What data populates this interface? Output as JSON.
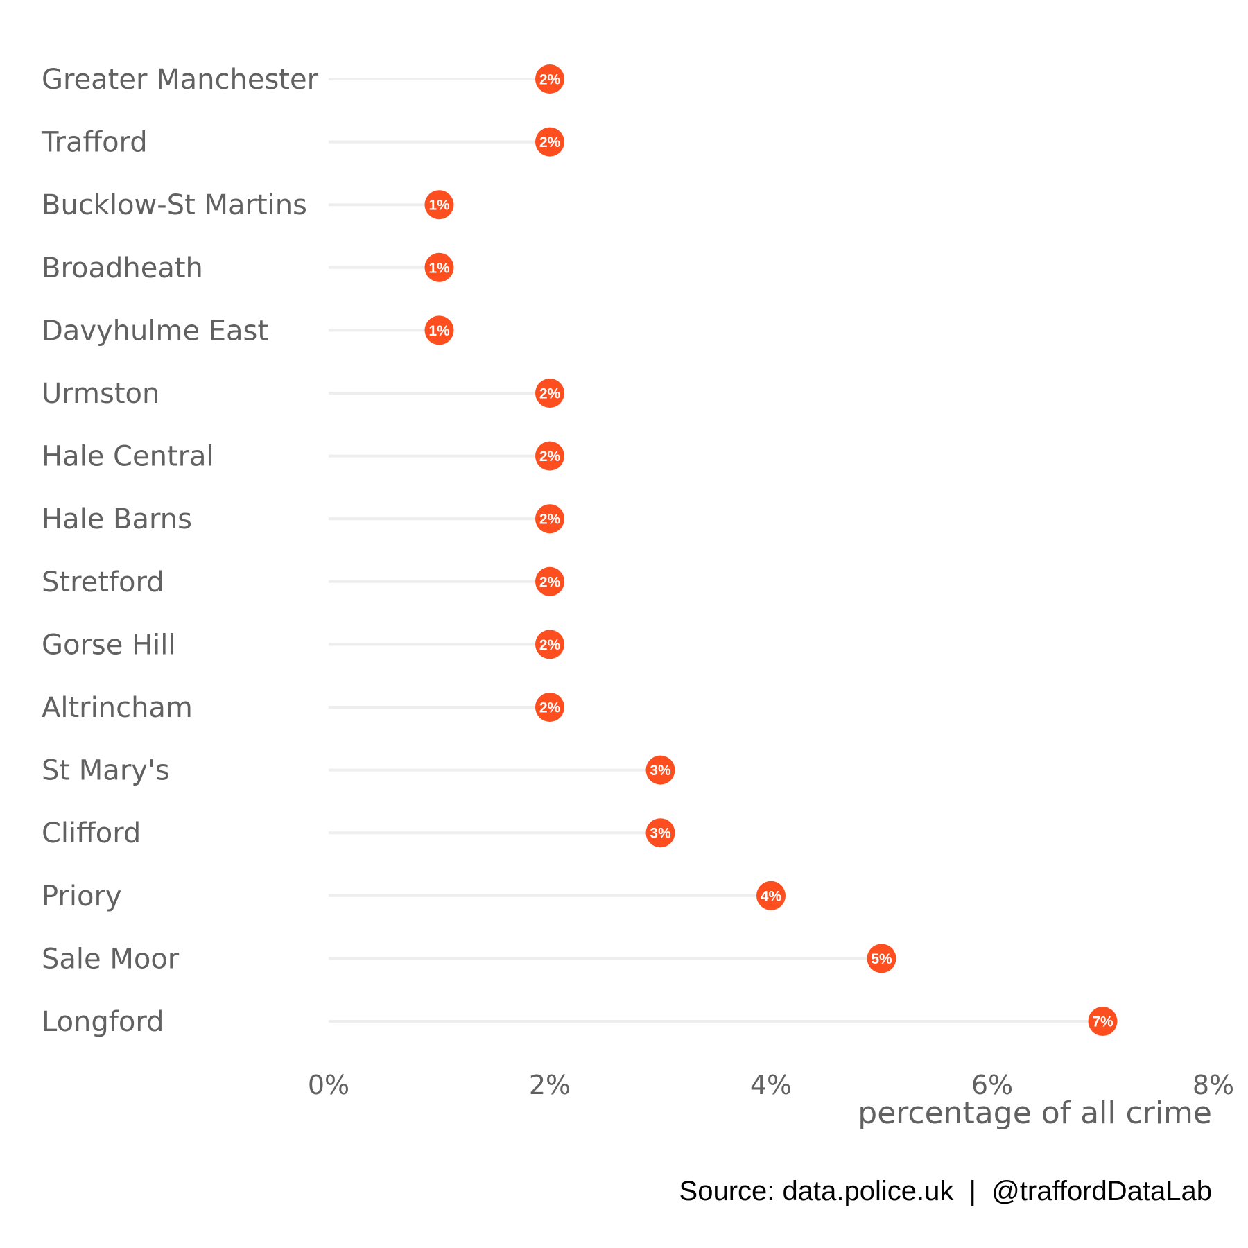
{
  "chart_data": {
    "type": "lollipop",
    "categories": [
      "Greater Manchester",
      "Trafford",
      "Bucklow-St Martins",
      "Broadheath",
      "Davyhulme East",
      "Urmston",
      "Hale Central",
      "Hale Barns",
      "Stretford",
      "Gorse Hill",
      "Altrincham",
      "St Mary's",
      "Clifford",
      "Priory",
      "Sale Moor",
      "Longford"
    ],
    "values": [
      2,
      2,
      1,
      1,
      1,
      2,
      2,
      2,
      2,
      2,
      2,
      3,
      3,
      4,
      5,
      7
    ],
    "value_labels": [
      "2%",
      "2%",
      "1%",
      "1%",
      "1%",
      "2%",
      "2%",
      "2%",
      "2%",
      "2%",
      "2%",
      "3%",
      "3%",
      "4%",
      "5%",
      "7%"
    ],
    "xlabel": "percentage of all crime",
    "xlim": [
      0,
      8
    ],
    "xticks": [
      0,
      2,
      4,
      6,
      8
    ],
    "xtick_labels": [
      "0%",
      "2%",
      "4%",
      "6%",
      "8%"
    ],
    "caption": "Source: data.police.uk  |  @traffordDataLab",
    "grid": false,
    "colors": {
      "dot": "#fc4e1f",
      "stem": "#eeeeee",
      "label_text": "#616161",
      "dot_text": "#ffffff"
    }
  }
}
